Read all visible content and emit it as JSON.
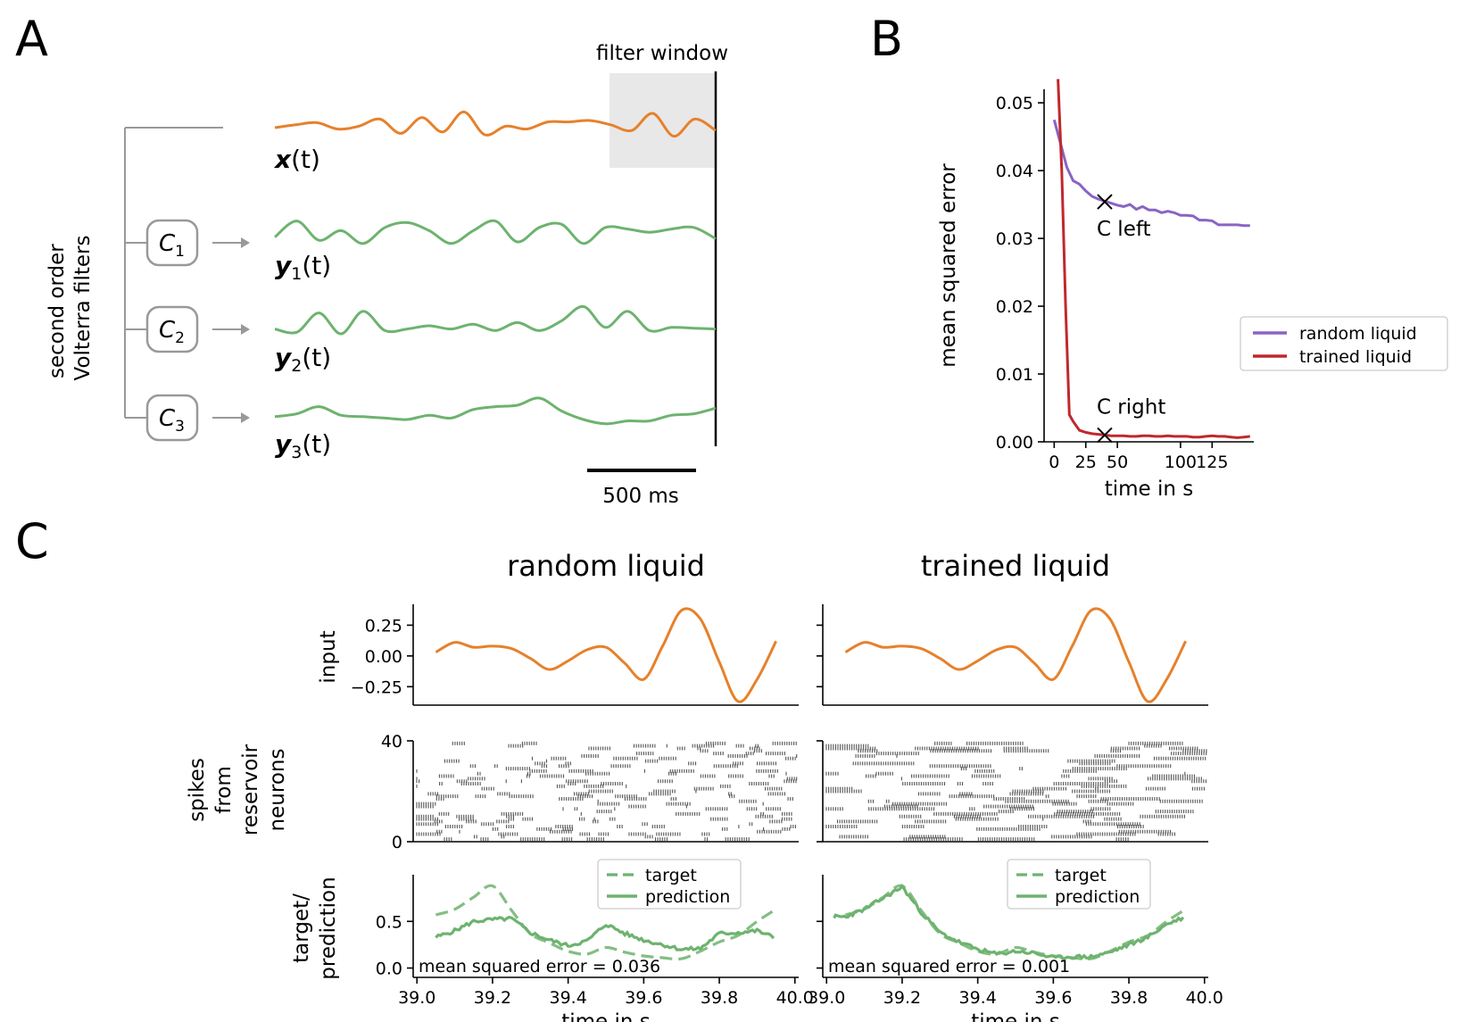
{
  "panels": {
    "a": "A",
    "b": "B",
    "c": "C"
  },
  "colors": {
    "input": "#e6812b",
    "output": "#6db36f",
    "random": "#8a64c4",
    "trained": "#c0282d",
    "spike": "#555555",
    "window": "#e8e8e8",
    "box": "#999999"
  },
  "panel_a": {
    "filter_window_label": "filter window",
    "ylabel_line1": "second order",
    "ylabel_line2": "Volterra filters",
    "scalebar_label": "500 ms",
    "signals": [
      {
        "label": "x(t)",
        "symbol": "x",
        "sub": "",
        "color_key": "input"
      },
      {
        "label": "y1(t)",
        "symbol": "y",
        "sub": "1",
        "color_key": "output",
        "filter": "C1",
        "filter_symbol": "C",
        "filter_sub": "1"
      },
      {
        "label": "y2(t)",
        "symbol": "y",
        "sub": "2",
        "color_key": "output",
        "filter": "C2",
        "filter_symbol": "C",
        "filter_sub": "2"
      },
      {
        "label": "y3(t)",
        "symbol": "y",
        "sub": "3",
        "color_key": "output",
        "filter": "C3",
        "filter_symbol": "C",
        "filter_sub": "3"
      }
    ]
  },
  "chart_data": [
    {
      "id": "B",
      "type": "line",
      "xlabel": "time in s",
      "ylabel": "mean squared error",
      "xlim": [
        -8,
        158
      ],
      "ylim": [
        0,
        0.052
      ],
      "xticks": [
        0,
        25,
        50,
        100,
        125
      ],
      "xtick_labels": [
        "0",
        "25",
        "50",
        "100",
        "125"
      ],
      "yticks": [
        0,
        0.01,
        0.02,
        0.03,
        0.04,
        0.05
      ],
      "ytick_labels": [
        "0.00",
        "0.01",
        "0.02",
        "0.03",
        "0.04",
        "0.05"
      ],
      "legend": "right",
      "series": [
        {
          "name": "random liquid",
          "color_key": "random",
          "x": [
            0,
            5,
            10,
            15,
            20,
            25,
            30,
            35,
            40,
            45,
            50,
            55,
            60,
            65,
            70,
            75,
            80,
            85,
            90,
            95,
            100,
            105,
            110,
            115,
            120,
            125,
            130,
            135,
            140,
            145,
            150,
            155
          ],
          "y": [
            0.0475,
            0.044,
            0.0405,
            0.0385,
            0.038,
            0.037,
            0.0362,
            0.0358,
            0.0355,
            0.0352,
            0.0349,
            0.0347,
            0.035,
            0.0343,
            0.0347,
            0.0342,
            0.0342,
            0.0338,
            0.034,
            0.0338,
            0.0334,
            0.0334,
            0.0333,
            0.0327,
            0.0327,
            0.0326,
            0.032,
            0.032,
            0.032,
            0.032,
            0.0319,
            0.0319
          ]
        },
        {
          "name": "trained liquid",
          "color_key": "trained",
          "x": [
            3,
            6,
            9,
            12,
            15,
            20,
            25,
            30,
            35,
            40,
            45,
            50,
            55,
            60,
            65,
            70,
            75,
            80,
            85,
            90,
            95,
            100,
            105,
            110,
            115,
            120,
            125,
            130,
            135,
            140,
            145,
            150,
            155
          ],
          "y": [
            0.0535,
            0.04,
            0.02,
            0.004,
            0.003,
            0.0017,
            0.0014,
            0.0012,
            0.0011,
            0.001,
            0.0009,
            0.0009,
            0.0009,
            0.0008,
            0.0008,
            0.0009,
            0.0009,
            0.0008,
            0.0008,
            0.0009,
            0.0008,
            0.0008,
            0.0008,
            0.0007,
            0.0007,
            0.0008,
            0.0009,
            0.0008,
            0.0008,
            0.0007,
            0.0006,
            0.0007,
            0.0008
          ]
        }
      ],
      "markers": [
        {
          "label": "C left",
          "x": 40,
          "y": 0.0354
        },
        {
          "label": "C right",
          "x": 40,
          "y": 0.001
        }
      ]
    },
    {
      "id": "C-input",
      "type": "line",
      "ylabel": "input",
      "xlim": [
        38.99,
        40.01
      ],
      "ylim": [
        -0.4,
        0.42
      ],
      "yticks": [
        -0.25,
        0,
        0.25
      ],
      "ytick_labels": [
        "−0.25",
        "0.00",
        "0.25"
      ],
      "series": [
        {
          "color_key": "input",
          "x": [
            39.05,
            39.1,
            39.15,
            39.2,
            39.25,
            39.3,
            39.35,
            39.4,
            39.45,
            39.5,
            39.55,
            39.6,
            39.65,
            39.7,
            39.75,
            39.8,
            39.85,
            39.9,
            39.95
          ],
          "y": [
            0.03,
            0.11,
            0.07,
            0.08,
            0.06,
            -0.02,
            -0.11,
            -0.04,
            0.05,
            0.07,
            -0.06,
            -0.19,
            0.08,
            0.37,
            0.3,
            -0.05,
            -0.37,
            -0.19,
            0.12
          ]
        }
      ]
    },
    {
      "id": "C-spikes",
      "type": "scatter",
      "ylabel_lines": [
        "spikes",
        "from",
        "reservoir",
        "neurons"
      ],
      "ylim": [
        0,
        40
      ],
      "yticks": [
        0,
        40
      ],
      "ytick_labels": [
        "0",
        "40"
      ],
      "neurons": 40,
      "conditions": [
        "random liquid",
        "trained liquid"
      ]
    },
    {
      "id": "C-output",
      "type": "line",
      "ylabel_lines": [
        "target/",
        "prediction"
      ],
      "xlabel": "time in s",
      "xlim": [
        38.99,
        40.01
      ],
      "ylim": [
        -0.1,
        1.0
      ],
      "xticks": [
        39.0,
        39.2,
        39.4,
        39.6,
        39.8,
        40.0
      ],
      "xtick_labels": [
        "39.0",
        "39.2",
        "39.4",
        "39.6",
        "39.8",
        "40.0"
      ],
      "yticks": [
        0,
        0.5
      ],
      "ytick_labels": [
        "0.0",
        "0.5"
      ],
      "legend": "top-right",
      "target": {
        "name": "target",
        "x": [
          39.05,
          39.1,
          39.15,
          39.2,
          39.25,
          39.3,
          39.35,
          39.4,
          39.45,
          39.5,
          39.55,
          39.6,
          39.65,
          39.7,
          39.75,
          39.8,
          39.85,
          39.9,
          39.95
        ],
        "y": [
          0.57,
          0.63,
          0.76,
          0.88,
          0.62,
          0.37,
          0.27,
          0.18,
          0.15,
          0.22,
          0.17,
          0.13,
          0.11,
          0.1,
          0.18,
          0.28,
          0.35,
          0.5,
          0.63
        ]
      },
      "panels": [
        {
          "title": "random liquid",
          "mse_text": "mean squared error = 0.036",
          "prediction": {
            "name": "prediction",
            "x": [
              39.05,
              39.1,
              39.15,
              39.2,
              39.25,
              39.3,
              39.35,
              39.4,
              39.45,
              39.5,
              39.55,
              39.6,
              39.65,
              39.7,
              39.75,
              39.8,
              39.85,
              39.9,
              39.95
            ],
            "y": [
              0.33,
              0.4,
              0.5,
              0.52,
              0.53,
              0.38,
              0.3,
              0.24,
              0.29,
              0.47,
              0.37,
              0.3,
              0.25,
              0.2,
              0.21,
              0.37,
              0.38,
              0.4,
              0.32
            ]
          }
        },
        {
          "title": "trained liquid",
          "mse_text": "mean squared error = 0.001",
          "prediction": {
            "name": "prediction",
            "x": [
              39.02,
              39.05,
              39.1,
              39.15,
              39.2,
              39.25,
              39.3,
              39.35,
              39.4,
              39.45,
              39.5,
              39.55,
              39.6,
              39.65,
              39.7,
              39.75,
              39.8,
              39.85,
              39.9,
              39.95
            ],
            "y": [
              0.55,
              0.55,
              0.63,
              0.75,
              0.87,
              0.6,
              0.38,
              0.28,
              0.2,
              0.15,
              0.18,
              0.16,
              0.11,
              0.12,
              0.12,
              0.17,
              0.25,
              0.33,
              0.47,
              0.55
            ]
          }
        }
      ]
    }
  ]
}
